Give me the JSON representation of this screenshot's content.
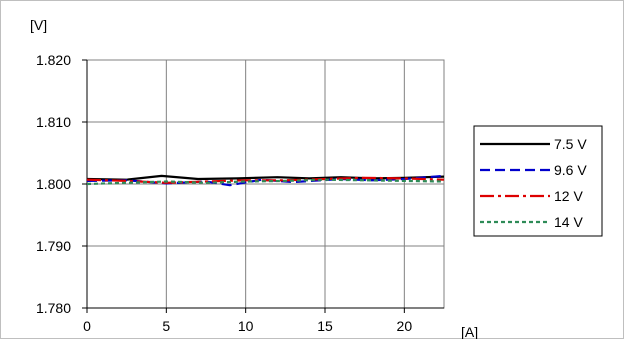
{
  "chart_data": {
    "type": "line",
    "title": "",
    "xlabel": "[A]",
    "ylabel": "[V]",
    "xlim": [
      0,
      22.5
    ],
    "ylim": [
      1.78,
      1.82
    ],
    "x_ticks": [
      "0",
      "5",
      "10",
      "15",
      "20"
    ],
    "y_ticks": [
      "1.780",
      "1.790",
      "1.800",
      "1.810",
      "1.820"
    ],
    "grid": true,
    "legend": "right",
    "series": [
      {
        "name": "7.5 V",
        "color": "#000000",
        "dash": "solid",
        "x": [
          0,
          2.5,
          4.7,
          7,
          9.5,
          12,
          14,
          16,
          18,
          20,
          22.5
        ],
        "y": [
          1.8008,
          1.8007,
          1.8013,
          1.8008,
          1.8009,
          1.8011,
          1.8009,
          1.8011,
          1.8009,
          1.801,
          1.8012
        ]
      },
      {
        "name": "9.6 V",
        "color": "#0000cc",
        "dash": "long-dash",
        "x": [
          0,
          2.5,
          5,
          7.5,
          9,
          11,
          13,
          16,
          18,
          20,
          22.5
        ],
        "y": [
          1.8005,
          1.8006,
          1.8001,
          1.8004,
          1.7998,
          1.8007,
          1.8003,
          1.8008,
          1.8006,
          1.8008,
          1.8013
        ]
      },
      {
        "name": "12 V",
        "color": "#dd0000",
        "dash": "dash-dot",
        "x": [
          0,
          2.5,
          5,
          7.5,
          10,
          12.5,
          15,
          17.5,
          20,
          22.5
        ],
        "y": [
          1.8007,
          1.8005,
          1.8002,
          1.8004,
          1.8006,
          1.8006,
          1.8008,
          1.801,
          1.8009,
          1.8007
        ]
      },
      {
        "name": "14 V",
        "color": "#2e8b57",
        "dash": "dotted",
        "x": [
          0,
          2.5,
          5,
          7.5,
          10,
          12.5,
          15,
          17.5,
          20,
          22.5
        ],
        "y": [
          1.8,
          1.8002,
          1.8004,
          1.8002,
          1.8004,
          1.8005,
          1.8007,
          1.8006,
          1.8005,
          1.8004
        ]
      }
    ]
  }
}
